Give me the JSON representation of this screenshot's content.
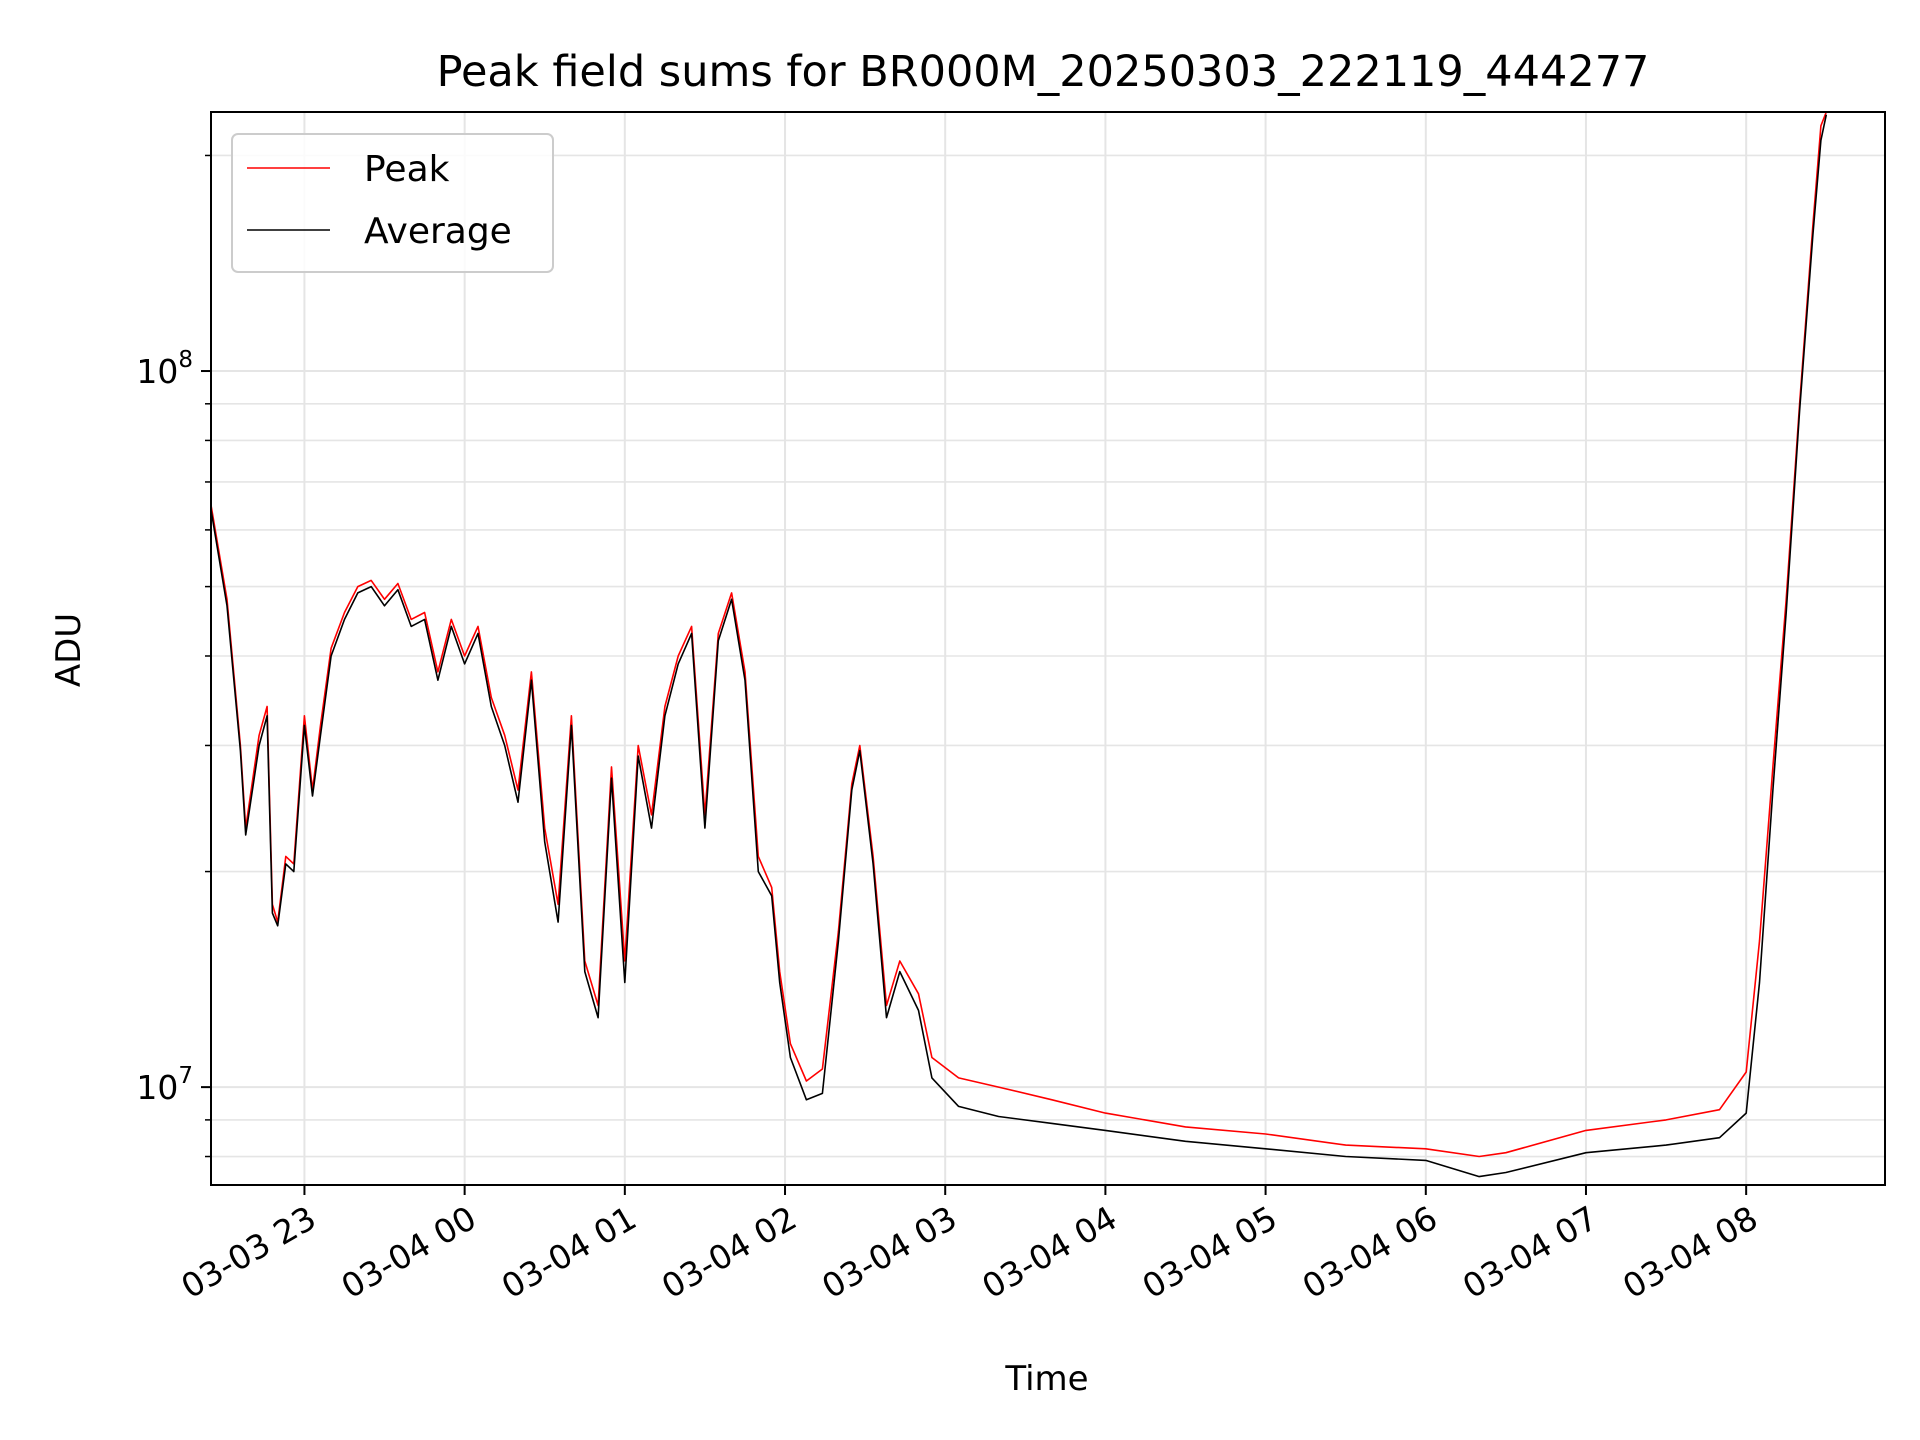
{
  "chart_data": {
    "type": "line",
    "title": "Peak field sums for BR000M_20250303_222119_444277",
    "xlabel": "Time",
    "ylabel": "ADU",
    "y_scale": "log",
    "ylim": [
      7300000,
      230000000
    ],
    "xlim": [
      "2025-03-03 22:25",
      "2025-03-04 08:52"
    ],
    "grid": true,
    "legend_position": "top-left",
    "x_tick_labels": [
      "03-03 23",
      "03-04 00",
      "03-04 01",
      "03-04 02",
      "03-04 03",
      "03-04 04",
      "03-04 05",
      "03-04 06",
      "03-04 07",
      "03-04 08"
    ],
    "x_ticks": [
      "2025-03-03 23:00",
      "2025-03-04 00:00",
      "2025-03-04 01:00",
      "2025-03-04 02:00",
      "2025-03-04 03:00",
      "2025-03-04 04:00",
      "2025-03-04 05:00",
      "2025-03-04 06:00",
      "2025-03-04 07:00",
      "2025-03-04 08:00"
    ],
    "y_tick_labels": [
      {
        "base": "10",
        "exp": "7",
        "value": 10000000
      },
      {
        "base": "10",
        "exp": "8",
        "value": 100000000
      }
    ],
    "series": [
      {
        "name": "Peak",
        "color": "#ff0000",
        "points": [
          [
            "2025-03-03 22:25",
            65000000
          ],
          [
            "2025-03-03 22:31",
            48000000
          ],
          [
            "2025-03-03 22:36",
            30000000
          ],
          [
            "2025-03-03 22:38",
            23000000
          ],
          [
            "2025-03-03 22:43",
            31000000
          ],
          [
            "2025-03-03 22:46",
            34000000
          ],
          [
            "2025-03-03 22:48",
            18000000
          ],
          [
            "2025-03-03 22:50",
            17000000
          ],
          [
            "2025-03-03 22:53",
            21000000
          ],
          [
            "2025-03-03 22:56",
            20500000
          ],
          [
            "2025-03-03 23:00",
            33000000
          ],
          [
            "2025-03-03 23:03",
            26000000
          ],
          [
            "2025-03-03 23:06",
            32000000
          ],
          [
            "2025-03-03 23:10",
            41000000
          ],
          [
            "2025-03-03 23:15",
            46000000
          ],
          [
            "2025-03-03 23:20",
            50000000
          ],
          [
            "2025-03-03 23:25",
            51000000
          ],
          [
            "2025-03-03 23:30",
            48000000
          ],
          [
            "2025-03-03 23:35",
            50500000
          ],
          [
            "2025-03-03 23:40",
            45000000
          ],
          [
            "2025-03-03 23:45",
            46000000
          ],
          [
            "2025-03-03 23:50",
            38000000
          ],
          [
            "2025-03-03 23:55",
            45000000
          ],
          [
            "2025-03-04 00:00",
            40000000
          ],
          [
            "2025-03-04 00:05",
            44000000
          ],
          [
            "2025-03-04 00:10",
            35000000
          ],
          [
            "2025-03-04 00:15",
            31000000
          ],
          [
            "2025-03-04 00:20",
            26000000
          ],
          [
            "2025-03-04 00:25",
            38000000
          ],
          [
            "2025-03-04 00:30",
            23000000
          ],
          [
            "2025-03-04 00:35",
            18000000
          ],
          [
            "2025-03-04 00:40",
            33000000
          ],
          [
            "2025-03-04 00:45",
            15000000
          ],
          [
            "2025-03-04 00:50",
            13000000
          ],
          [
            "2025-03-04 00:55",
            28000000
          ],
          [
            "2025-03-04 01:00",
            15000000
          ],
          [
            "2025-03-04 01:05",
            30000000
          ],
          [
            "2025-03-04 01:10",
            24000000
          ],
          [
            "2025-03-04 01:15",
            34000000
          ],
          [
            "2025-03-04 01:20",
            40000000
          ],
          [
            "2025-03-04 01:25",
            44000000
          ],
          [
            "2025-03-04 01:30",
            24000000
          ],
          [
            "2025-03-04 01:35",
            43000000
          ],
          [
            "2025-03-04 01:40",
            49000000
          ],
          [
            "2025-03-04 01:45",
            38000000
          ],
          [
            "2025-03-04 01:50",
            21000000
          ],
          [
            "2025-03-04 01:55",
            19000000
          ],
          [
            "2025-03-04 01:58",
            14500000
          ],
          [
            "2025-03-04 02:02",
            11500000
          ],
          [
            "2025-03-04 02:08",
            10200000
          ],
          [
            "2025-03-04 02:14",
            10600000
          ],
          [
            "2025-03-04 02:20",
            16500000
          ],
          [
            "2025-03-04 02:25",
            26500000
          ],
          [
            "2025-03-04 02:28",
            30000000
          ],
          [
            "2025-03-04 02:33",
            21000000
          ],
          [
            "2025-03-04 02:38",
            13000000
          ],
          [
            "2025-03-04 02:43",
            15000000
          ],
          [
            "2025-03-04 02:50",
            13500000
          ],
          [
            "2025-03-04 02:55",
            11000000
          ],
          [
            "2025-03-04 03:05",
            10300000
          ],
          [
            "2025-03-04 03:20",
            10000000
          ],
          [
            "2025-03-04 03:40",
            9600000
          ],
          [
            "2025-03-04 04:00",
            9200000
          ],
          [
            "2025-03-04 04:30",
            8800000
          ],
          [
            "2025-03-04 05:00",
            8600000
          ],
          [
            "2025-03-04 05:30",
            8300000
          ],
          [
            "2025-03-04 06:00",
            8200000
          ],
          [
            "2025-03-04 06:20",
            8000000
          ],
          [
            "2025-03-04 06:30",
            8100000
          ],
          [
            "2025-03-04 07:00",
            8700000
          ],
          [
            "2025-03-04 07:30",
            9000000
          ],
          [
            "2025-03-04 07:50",
            9300000
          ],
          [
            "2025-03-04 08:00",
            10500000
          ],
          [
            "2025-03-04 08:05",
            16000000
          ],
          [
            "2025-03-04 08:10",
            28000000
          ],
          [
            "2025-03-04 08:15",
            48000000
          ],
          [
            "2025-03-04 08:20",
            90000000
          ],
          [
            "2025-03-04 08:25",
            160000000
          ],
          [
            "2025-03-04 08:28",
            220000000
          ],
          [
            "2025-03-04 08:30",
            230000000
          ]
        ]
      },
      {
        "name": "Average",
        "color": "#000000",
        "points": [
          [
            "2025-03-03 22:25",
            64000000
          ],
          [
            "2025-03-03 22:31",
            47000000
          ],
          [
            "2025-03-03 22:36",
            29500000
          ],
          [
            "2025-03-03 22:38",
            22500000
          ],
          [
            "2025-03-03 22:43",
            30000000
          ],
          [
            "2025-03-03 22:46",
            33000000
          ],
          [
            "2025-03-03 22:48",
            17500000
          ],
          [
            "2025-03-03 22:50",
            16800000
          ],
          [
            "2025-03-03 22:53",
            20500000
          ],
          [
            "2025-03-03 22:56",
            20000000
          ],
          [
            "2025-03-03 23:00",
            32000000
          ],
          [
            "2025-03-03 23:03",
            25500000
          ],
          [
            "2025-03-03 23:06",
            31000000
          ],
          [
            "2025-03-03 23:10",
            40000000
          ],
          [
            "2025-03-03 23:15",
            45000000
          ],
          [
            "2025-03-03 23:20",
            49000000
          ],
          [
            "2025-03-03 23:25",
            50000000
          ],
          [
            "2025-03-03 23:30",
            47000000
          ],
          [
            "2025-03-03 23:35",
            49500000
          ],
          [
            "2025-03-03 23:40",
            44000000
          ],
          [
            "2025-03-03 23:45",
            45000000
          ],
          [
            "2025-03-03 23:50",
            37000000
          ],
          [
            "2025-03-03 23:55",
            44000000
          ],
          [
            "2025-03-04 00:00",
            39000000
          ],
          [
            "2025-03-04 00:05",
            43000000
          ],
          [
            "2025-03-04 00:10",
            34000000
          ],
          [
            "2025-03-04 00:15",
            30000000
          ],
          [
            "2025-03-04 00:20",
            25000000
          ],
          [
            "2025-03-04 00:25",
            37000000
          ],
          [
            "2025-03-04 00:30",
            22000000
          ],
          [
            "2025-03-04 00:35",
            17000000
          ],
          [
            "2025-03-04 00:40",
            32000000
          ],
          [
            "2025-03-04 00:45",
            14500000
          ],
          [
            "2025-03-04 00:50",
            12500000
          ],
          [
            "2025-03-04 00:55",
            27000000
          ],
          [
            "2025-03-04 01:00",
            14000000
          ],
          [
            "2025-03-04 01:05",
            29000000
          ],
          [
            "2025-03-04 01:10",
            23000000
          ],
          [
            "2025-03-04 01:15",
            33000000
          ],
          [
            "2025-03-04 01:20",
            39000000
          ],
          [
            "2025-03-04 01:25",
            43000000
          ],
          [
            "2025-03-04 01:30",
            23000000
          ],
          [
            "2025-03-04 01:35",
            42000000
          ],
          [
            "2025-03-04 01:40",
            48000000
          ],
          [
            "2025-03-04 01:45",
            37000000
          ],
          [
            "2025-03-04 01:50",
            20000000
          ],
          [
            "2025-03-04 01:55",
            18500000
          ],
          [
            "2025-03-04 01:58",
            14000000
          ],
          [
            "2025-03-04 02:02",
            11000000
          ],
          [
            "2025-03-04 02:08",
            9600000
          ],
          [
            "2025-03-04 02:14",
            9800000
          ],
          [
            "2025-03-04 02:20",
            16000000
          ],
          [
            "2025-03-04 02:25",
            26000000
          ],
          [
            "2025-03-04 02:28",
            29500000
          ],
          [
            "2025-03-04 02:33",
            20500000
          ],
          [
            "2025-03-04 02:38",
            12500000
          ],
          [
            "2025-03-04 02:43",
            14500000
          ],
          [
            "2025-03-04 02:50",
            12800000
          ],
          [
            "2025-03-04 02:55",
            10300000
          ],
          [
            "2025-03-04 03:05",
            9400000
          ],
          [
            "2025-03-04 03:20",
            9100000
          ],
          [
            "2025-03-04 03:40",
            8900000
          ],
          [
            "2025-03-04 04:00",
            8700000
          ],
          [
            "2025-03-04 04:30",
            8400000
          ],
          [
            "2025-03-04 05:00",
            8200000
          ],
          [
            "2025-03-04 05:30",
            8000000
          ],
          [
            "2025-03-04 06:00",
            7900000
          ],
          [
            "2025-03-04 06:20",
            7500000
          ],
          [
            "2025-03-04 06:30",
            7600000
          ],
          [
            "2025-03-04 07:00",
            8100000
          ],
          [
            "2025-03-04 07:30",
            8300000
          ],
          [
            "2025-03-04 07:50",
            8500000
          ],
          [
            "2025-03-04 08:00",
            9200000
          ],
          [
            "2025-03-04 08:05",
            14000000
          ],
          [
            "2025-03-04 08:10",
            26000000
          ],
          [
            "2025-03-04 08:15",
            46000000
          ],
          [
            "2025-03-04 08:20",
            88000000
          ],
          [
            "2025-03-04 08:25",
            155000000
          ],
          [
            "2025-03-04 08:28",
            210000000
          ],
          [
            "2025-03-04 08:30",
            228000000
          ]
        ]
      }
    ]
  }
}
